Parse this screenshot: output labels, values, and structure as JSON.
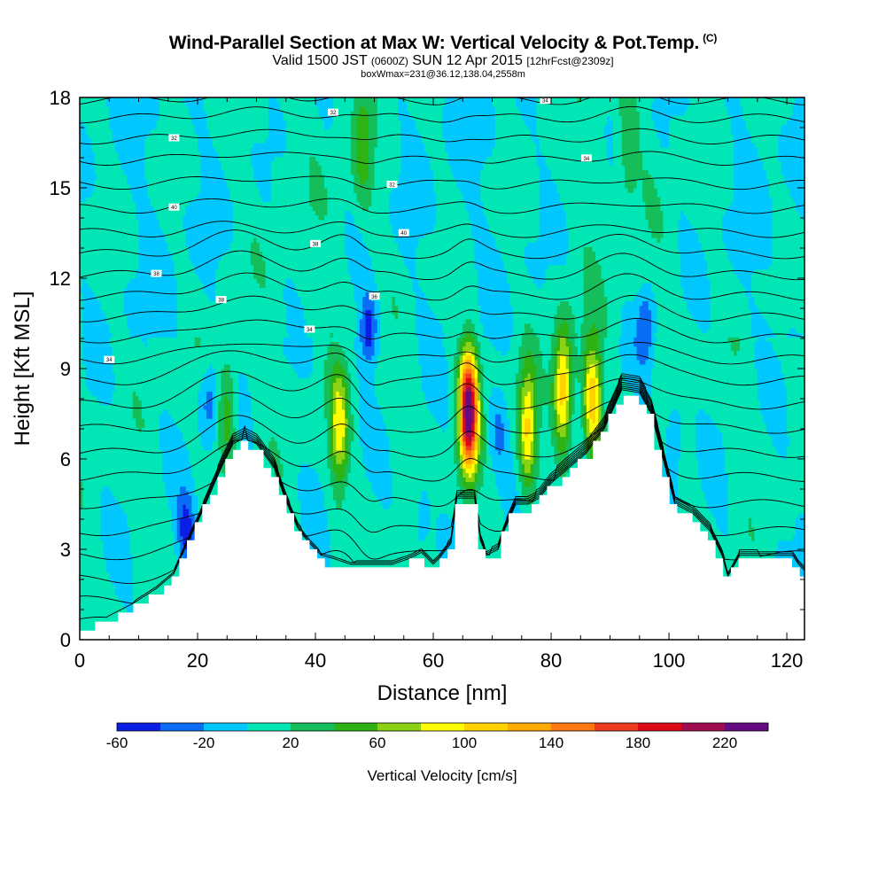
{
  "title": "Wind-Parallel Section at Max W: Vertical Velocity & Pot.Temp.",
  "copyright": "(C)",
  "subtitle": {
    "valid": "Valid 1500 JST",
    "utc": "(0600Z)",
    "date": "SUN 12 Apr 2015",
    "fcst": "[12hrFcst@2309z]"
  },
  "box_info": "boxWmax=231@36.12,138.04,2558m",
  "chart_data": {
    "type": "heatmap",
    "xlabel": "Distance [nm]",
    "ylabel": "Height [Kft MSL]",
    "xlim": [
      0,
      123
    ],
    "ylim": [
      0,
      18
    ],
    "x_ticks": [
      0,
      20,
      40,
      60,
      80,
      100,
      120
    ],
    "y_ticks": [
      0,
      3,
      6,
      9,
      12,
      15,
      18
    ],
    "colorbar": {
      "label": "Vertical Velocity [cm/s]",
      "tick_labels": [
        "-60",
        "-20",
        "20",
        "60",
        "100",
        "140",
        "180",
        "220"
      ],
      "tick_values": [
        -60,
        -20,
        20,
        60,
        100,
        140,
        180,
        220
      ],
      "levels": [
        -60,
        -40,
        -20,
        0,
        20,
        40,
        60,
        80,
        100,
        120,
        140,
        160,
        180,
        200,
        220,
        240
      ],
      "colors": [
        "#0a1ee6",
        "#0a6ef5",
        "#00c8ff",
        "#00e6b4",
        "#14be5a",
        "#2db414",
        "#8cd214",
        "#ffff00",
        "#ffd200",
        "#ffaa00",
        "#ff7814",
        "#f03c1e",
        "#dc0a14",
        "#a00a50",
        "#640a82"
      ]
    },
    "terrain_profile": {
      "x": [
        0,
        5,
        9,
        13,
        16,
        18,
        20,
        22,
        24,
        26,
        28,
        30,
        33,
        35,
        37,
        39,
        41,
        43,
        46,
        50,
        53,
        56,
        58,
        60,
        61,
        63,
        64,
        66,
        67,
        68,
        69,
        71,
        72,
        74,
        76,
        78,
        80,
        83,
        86,
        89,
        92,
        95,
        97,
        99,
        101,
        104,
        107,
        109,
        110,
        112,
        115,
        118,
        121,
        122,
        123
      ],
      "height_kft": [
        0.3,
        0.6,
        1.0,
        1.5,
        2.0,
        2.9,
        3.7,
        4.6,
        5.5,
        6.3,
        6.5,
        6.3,
        5.5,
        4.4,
        3.5,
        3.0,
        2.6,
        2.5,
        2.3,
        2.3,
        2.3,
        2.5,
        2.7,
        2.3,
        2.5,
        3.0,
        4.5,
        4.5,
        4.5,
        3.1,
        2.6,
        2.8,
        3.4,
        4.3,
        4.3,
        4.5,
        5.0,
        5.5,
        6.0,
        6.8,
        8.1,
        8.0,
        7.3,
        5.8,
        4.3,
        4.0,
        3.4,
        2.6,
        1.9,
        2.6,
        2.6,
        2.6,
        2.6,
        2.3,
        2.1
      ]
    },
    "updrafts": [
      {
        "x": 66,
        "z": 7.6,
        "w_peak": 231
      },
      {
        "x": 82,
        "z": 8.3,
        "w_peak": 115
      },
      {
        "x": 87,
        "z": 8.0,
        "w_peak": 110
      },
      {
        "x": 76,
        "z": 7.0,
        "w_peak": 100
      },
      {
        "x": 44,
        "z": 7.0,
        "w_peak": 85
      },
      {
        "x": 25,
        "z": 7.6,
        "w_peak": 50
      },
      {
        "x": 48,
        "z": 16.5,
        "w_peak": 40
      },
      {
        "x": 93,
        "z": 16.5,
        "w_peak": 30
      }
    ],
    "downdrafts": [
      {
        "x": 49,
        "z": 10.3,
        "w_min": -60
      },
      {
        "x": 96,
        "z": 10.5,
        "w_min": -45
      },
      {
        "x": 18,
        "z": 3.6,
        "w_min": -55
      },
      {
        "x": 22,
        "z": 8.0,
        "w_min": -35
      },
      {
        "x": 71,
        "z": 7.0,
        "w_min": -30
      },
      {
        "x": 101,
        "z": 7.0,
        "w_min": -30
      },
      {
        "x": 58,
        "z": 4.0,
        "w_min": -25
      }
    ],
    "theta_contours": [
      {
        "z0": 0.6,
        "label": ""
      },
      {
        "z0": 1.3,
        "label": ""
      },
      {
        "z0": 2.0,
        "label": ""
      },
      {
        "z0": 2.8,
        "label": ""
      },
      {
        "z0": 3.6,
        "label": ""
      },
      {
        "z0": 4.5,
        "label": ""
      },
      {
        "z0": 5.4,
        "label": ""
      },
      {
        "z0": 6.2,
        "label": ""
      },
      {
        "z0": 7.0,
        "label": ""
      },
      {
        "z0": 7.8,
        "label": ""
      },
      {
        "z0": 8.6,
        "label": ""
      },
      {
        "z0": 9.3,
        "label": "34",
        "lx": 5
      },
      {
        "z0": 10.0,
        "label": "34",
        "lx": 39
      },
      {
        "z0": 10.7,
        "label": "38",
        "lx": 24
      },
      {
        "z0": 11.4,
        "label": "36",
        "lx": 50
      },
      {
        "z0": 12.1,
        "label": "38",
        "lx": 13
      },
      {
        "z0": 12.8,
        "label": "38",
        "lx": 40
      },
      {
        "z0": 13.5,
        "label": "40",
        "lx": 55
      },
      {
        "z0": 14.3,
        "label": "40",
        "lx": 16
      },
      {
        "z0": 15.1,
        "label": "32",
        "lx": 53
      },
      {
        "z0": 15.9,
        "label": "34",
        "lx": 86
      },
      {
        "z0": 16.6,
        "label": "32",
        "lx": 16
      },
      {
        "z0": 17.3,
        "label": "32",
        "lx": 43
      },
      {
        "z0": 17.9,
        "label": "34",
        "lx": 79
      }
    ]
  }
}
